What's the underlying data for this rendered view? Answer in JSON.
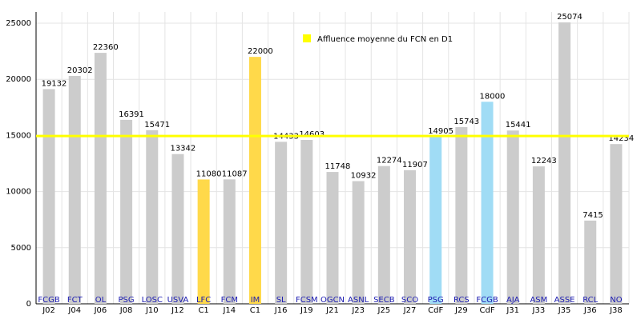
{
  "chart_data": {
    "type": "bar",
    "categories": [
      "J02",
      "J04",
      "J06",
      "J08",
      "J10",
      "J12",
      "C1",
      "J14",
      "C1",
      "J16",
      "J19",
      "J21",
      "J23",
      "J25",
      "J27",
      "CdF",
      "J29",
      "CdF",
      "J31",
      "J33",
      "J35",
      "J36",
      "J38"
    ],
    "opponents": [
      "FCGB",
      "FCT",
      "OL",
      "PSG",
      "LOSC",
      "USVA",
      "LFC",
      "FCM",
      "IM",
      "SL",
      "FCSM",
      "OGCN",
      "ASNL",
      "SECB",
      "SCO",
      "PSG",
      "RCS",
      "FCGB",
      "AJA",
      "ASM",
      "ASSE",
      "RCL",
      "NO"
    ],
    "values": [
      19132,
      20302,
      22360,
      16391,
      15471,
      13342,
      11080,
      11087,
      22000,
      14433,
      14603,
      11748,
      10932,
      12274,
      11907,
      14905,
      15743,
      18000,
      15441,
      12243,
      25074,
      7415,
      14234
    ],
    "colors": [
      "#cccccc",
      "#cccccc",
      "#cccccc",
      "#cccccc",
      "#cccccc",
      "#cccccc",
      "#ffd94a",
      "#cccccc",
      "#ffd94a",
      "#cccccc",
      "#cccccc",
      "#cccccc",
      "#cccccc",
      "#cccccc",
      "#cccccc",
      "#a0dcf5",
      "#cccccc",
      "#a0dcf5",
      "#cccccc",
      "#cccccc",
      "#cccccc",
      "#cccccc",
      "#cccccc"
    ],
    "reference_line": {
      "value": 14950,
      "label": "Affluence moyenne du FCN en D1",
      "color": "#ffff00"
    },
    "ylim": [
      0,
      26000
    ],
    "yticks": [
      0,
      5000,
      10000,
      15000,
      20000,
      25000
    ],
    "grid": true
  }
}
